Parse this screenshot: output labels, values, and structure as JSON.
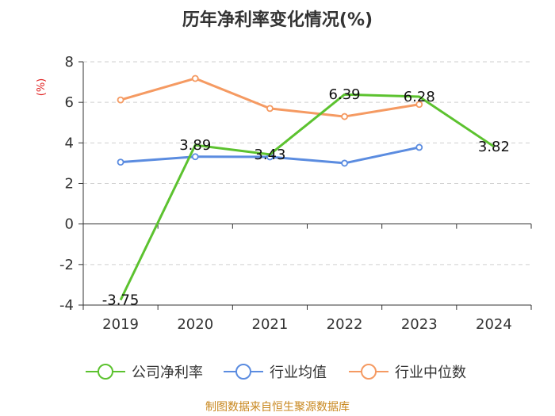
{
  "chart_data": {
    "type": "line",
    "title": "历年净利率变化情况(%)",
    "xlabel": "",
    "ylabel": "(%)",
    "ylim": [
      -4,
      8
    ],
    "yticks": [
      "8",
      "6",
      "4",
      "2",
      "0",
      "-2",
      "-4"
    ],
    "categories": [
      "2019",
      "2020",
      "2021",
      "2022",
      "2023",
      "2024"
    ],
    "series": [
      {
        "name": "公司净利率",
        "color": "#5cc22f",
        "values": [
          -3.75,
          3.89,
          3.43,
          6.39,
          6.28,
          3.82
        ],
        "labels": [
          "-3.75",
          "3.89",
          "3.43",
          "6.39",
          "6.28",
          "3.82"
        ]
      },
      {
        "name": "行业均值",
        "color": "#5b8ce0",
        "values": [
          3.05,
          3.32,
          3.31,
          3.0,
          3.78,
          null
        ]
      },
      {
        "name": "行业中位数",
        "color": "#f59a62",
        "values": [
          6.12,
          7.18,
          5.7,
          5.3,
          5.9,
          null
        ]
      }
    ],
    "grid": true,
    "legend_position": "bottom"
  },
  "source": "制图数据来自恒生聚源数据库"
}
